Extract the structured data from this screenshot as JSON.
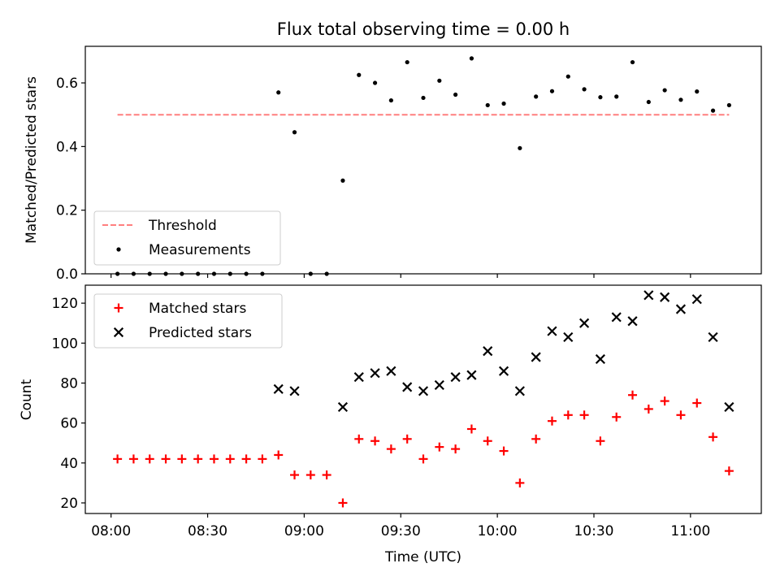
{
  "figure_title": "Flux total observing time = 0.00 h",
  "colors": {
    "threshold": "#ff7f7f",
    "measurements": "#000000",
    "matched": "#ff0000",
    "predicted": "#000000"
  },
  "chart_data": [
    {
      "type": "scatter",
      "ylabel": "Matched/Predicted stars",
      "ylim": [
        0,
        0.715
      ],
      "yticks": [
        "0.0",
        "0.2",
        "0.4",
        "0.6"
      ],
      "xlim": [
        "07:52",
        "11:22"
      ],
      "x_unit": "time of day (UTC)",
      "grid": false,
      "legend_position": "lower left",
      "legend": [
        "Threshold",
        "Measurements"
      ],
      "series": [
        {
          "name": "Threshold",
          "style": "dashed line",
          "x": [
            "08:02",
            "11:12"
          ],
          "y": [
            0.5,
            0.5
          ]
        },
        {
          "name": "Measurements",
          "style": "points",
          "x": [
            "08:02",
            "08:07",
            "08:12",
            "08:17",
            "08:22",
            "08:27",
            "08:32",
            "08:37",
            "08:42",
            "08:47",
            "08:52",
            "08:57",
            "09:02",
            "09:07",
            "09:12",
            "09:17",
            "09:22",
            "09:27",
            "09:32",
            "09:37",
            "09:42",
            "09:47",
            "09:52",
            "09:57",
            "10:02",
            "10:07",
            "10:12",
            "10:17",
            "10:22",
            "10:27",
            "10:32",
            "10:37",
            "10:42",
            "10:47",
            "10:52",
            "10:57",
            "11:02",
            "11:07",
            "11:12"
          ],
          "y": [
            0,
            0,
            0,
            0,
            0,
            0,
            0,
            0,
            0,
            0,
            0.57,
            0.445,
            0,
            0,
            0.293,
            0.625,
            0.6,
            0.545,
            0.665,
            0.553,
            0.607,
            0.563,
            0.677,
            0.53,
            0.535,
            0.395,
            0.557,
            0.574,
            0.62,
            0.58,
            0.555,
            0.557,
            0.665,
            0.54,
            0.577,
            0.547,
            0.573,
            0.513,
            0.53
          ]
        }
      ]
    },
    {
      "type": "scatter",
      "ylabel": "Count",
      "xlabel": "Time (UTC)",
      "ylim": [
        14.7,
        129
      ],
      "yticks": [
        "20",
        "40",
        "60",
        "80",
        "100",
        "120"
      ],
      "xlim": [
        "07:52",
        "11:22"
      ],
      "x_unit": "time of day (UTC)",
      "xticks": [
        "08:00",
        "08:30",
        "09:00",
        "09:30",
        "10:00",
        "10:30",
        "11:00"
      ],
      "grid": false,
      "legend_position": "upper left",
      "legend": [
        "Matched stars",
        "Predicted stars"
      ],
      "series": [
        {
          "name": "Matched stars",
          "marker": "+",
          "x": [
            "08:02",
            "08:07",
            "08:12",
            "08:17",
            "08:22",
            "08:27",
            "08:32",
            "08:37",
            "08:42",
            "08:47",
            "08:52",
            "08:57",
            "09:02",
            "09:07",
            "09:12",
            "09:17",
            "09:22",
            "09:27",
            "09:32",
            "09:37",
            "09:42",
            "09:47",
            "09:52",
            "09:57",
            "10:02",
            "10:07",
            "10:12",
            "10:17",
            "10:22",
            "10:27",
            "10:32",
            "10:37",
            "10:42",
            "10:47",
            "10:52",
            "10:57",
            "11:02",
            "11:07",
            "11:12"
          ],
          "y": [
            42,
            42,
            42,
            42,
            42,
            42,
            42,
            42,
            42,
            42,
            44,
            34,
            34,
            34,
            20,
            52,
            51,
            47,
            52,
            42,
            48,
            47,
            57,
            51,
            46,
            30,
            52,
            61,
            64,
            64,
            51,
            63,
            74,
            67,
            71,
            64,
            70,
            53,
            36
          ]
        },
        {
          "name": "Predicted stars",
          "marker": "x",
          "x": [
            "08:52",
            "08:57",
            "09:12",
            "09:17",
            "09:22",
            "09:27",
            "09:32",
            "09:37",
            "09:42",
            "09:47",
            "09:52",
            "09:57",
            "10:02",
            "10:07",
            "10:12",
            "10:17",
            "10:22",
            "10:27",
            "10:32",
            "10:37",
            "10:42",
            "10:47",
            "10:52",
            "10:57",
            "11:02",
            "11:07",
            "11:12"
          ],
          "y": [
            77,
            76,
            68,
            83,
            85,
            86,
            78,
            76,
            79,
            83,
            84,
            96,
            86,
            76,
            93,
            106,
            103,
            110,
            92,
            113,
            111,
            124,
            123,
            117,
            122,
            103,
            68
          ]
        }
      ]
    }
  ]
}
